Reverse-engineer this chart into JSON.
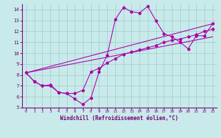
{
  "xlabel": "Windchill (Refroidissement éolien,°C)",
  "bg_color": "#c8eaea",
  "line_color": "#aa00aa",
  "grid_color": "#a0c8c8",
  "xlim": [
    -0.5,
    23.5
  ],
  "ylim": [
    5,
    14.5
  ],
  "xticks": [
    0,
    1,
    2,
    3,
    4,
    5,
    6,
    7,
    8,
    9,
    10,
    11,
    12,
    13,
    14,
    15,
    16,
    17,
    18,
    19,
    20,
    21,
    22,
    23
  ],
  "yticks": [
    5,
    6,
    7,
    8,
    9,
    10,
    11,
    12,
    13,
    14
  ],
  "line1_x": [
    0,
    1,
    2,
    3,
    4,
    5,
    6,
    7,
    8,
    9,
    10,
    11,
    12,
    13,
    14,
    15,
    16,
    17,
    18,
    19,
    20,
    21,
    22,
    23
  ],
  "line1_y": [
    8.2,
    7.4,
    7.0,
    7.0,
    6.4,
    6.3,
    5.8,
    5.3,
    5.9,
    8.3,
    9.8,
    13.1,
    14.2,
    13.8,
    13.7,
    14.3,
    13.0,
    11.8,
    11.5,
    11.0,
    10.4,
    11.6,
    11.6,
    12.7
  ],
  "line2_x": [
    0,
    1,
    2,
    3,
    4,
    5,
    6,
    7,
    8,
    9,
    10,
    11,
    12,
    13,
    14,
    15,
    16,
    17,
    18,
    19,
    20,
    21,
    22,
    23
  ],
  "line2_y": [
    8.2,
    7.4,
    7.0,
    7.1,
    6.4,
    6.3,
    6.3,
    6.6,
    8.3,
    8.6,
    9.1,
    9.5,
    9.9,
    10.1,
    10.3,
    10.5,
    10.7,
    11.0,
    11.2,
    11.3,
    11.5,
    11.7,
    12.0,
    12.2
  ],
  "line3_x": [
    0,
    23
  ],
  "line3_y": [
    8.2,
    12.7
  ],
  "line4_x": [
    0,
    23
  ],
  "line4_y": [
    8.2,
    11.5
  ]
}
